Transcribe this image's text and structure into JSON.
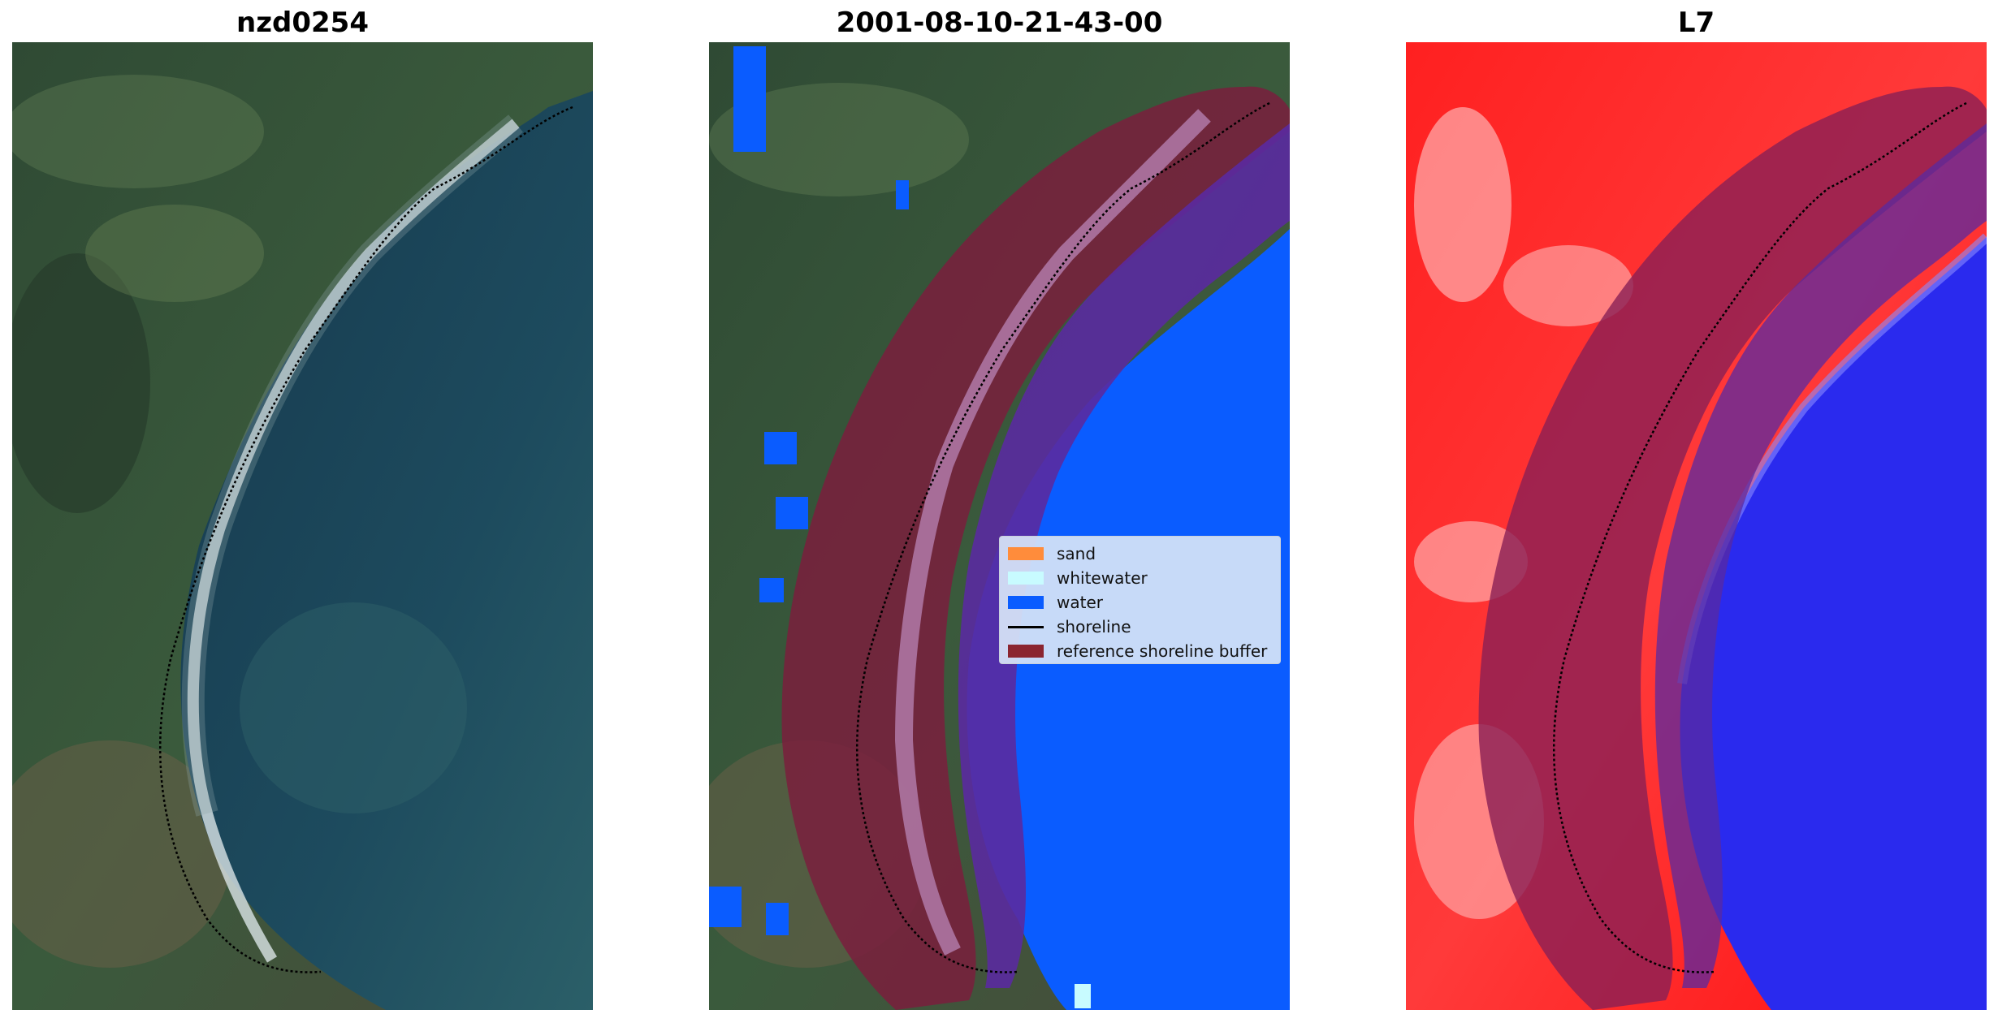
{
  "titles": {
    "site": "nzd0254",
    "date": "2001-08-10-21-43-00",
    "sensor": "L7"
  },
  "legend": {
    "items": [
      {
        "label": "sand",
        "color": "#ff8c3b"
      },
      {
        "label": "whitewater",
        "color": "#c8fbff"
      },
      {
        "label": "water",
        "color": "#0a5cff"
      },
      {
        "label": "shoreline",
        "color": "#000000",
        "kind": "line"
      },
      {
        "label": "reference shoreline buffer",
        "color": "#8b2530"
      }
    ]
  },
  "colors": {
    "vegetation": "#2d4a30",
    "ocean": "#1f4e66",
    "classified_water": "#0a5cff",
    "buffer": "#7a1f3d",
    "land_index": "#ff1a1a",
    "water_index": "#2222ee"
  }
}
